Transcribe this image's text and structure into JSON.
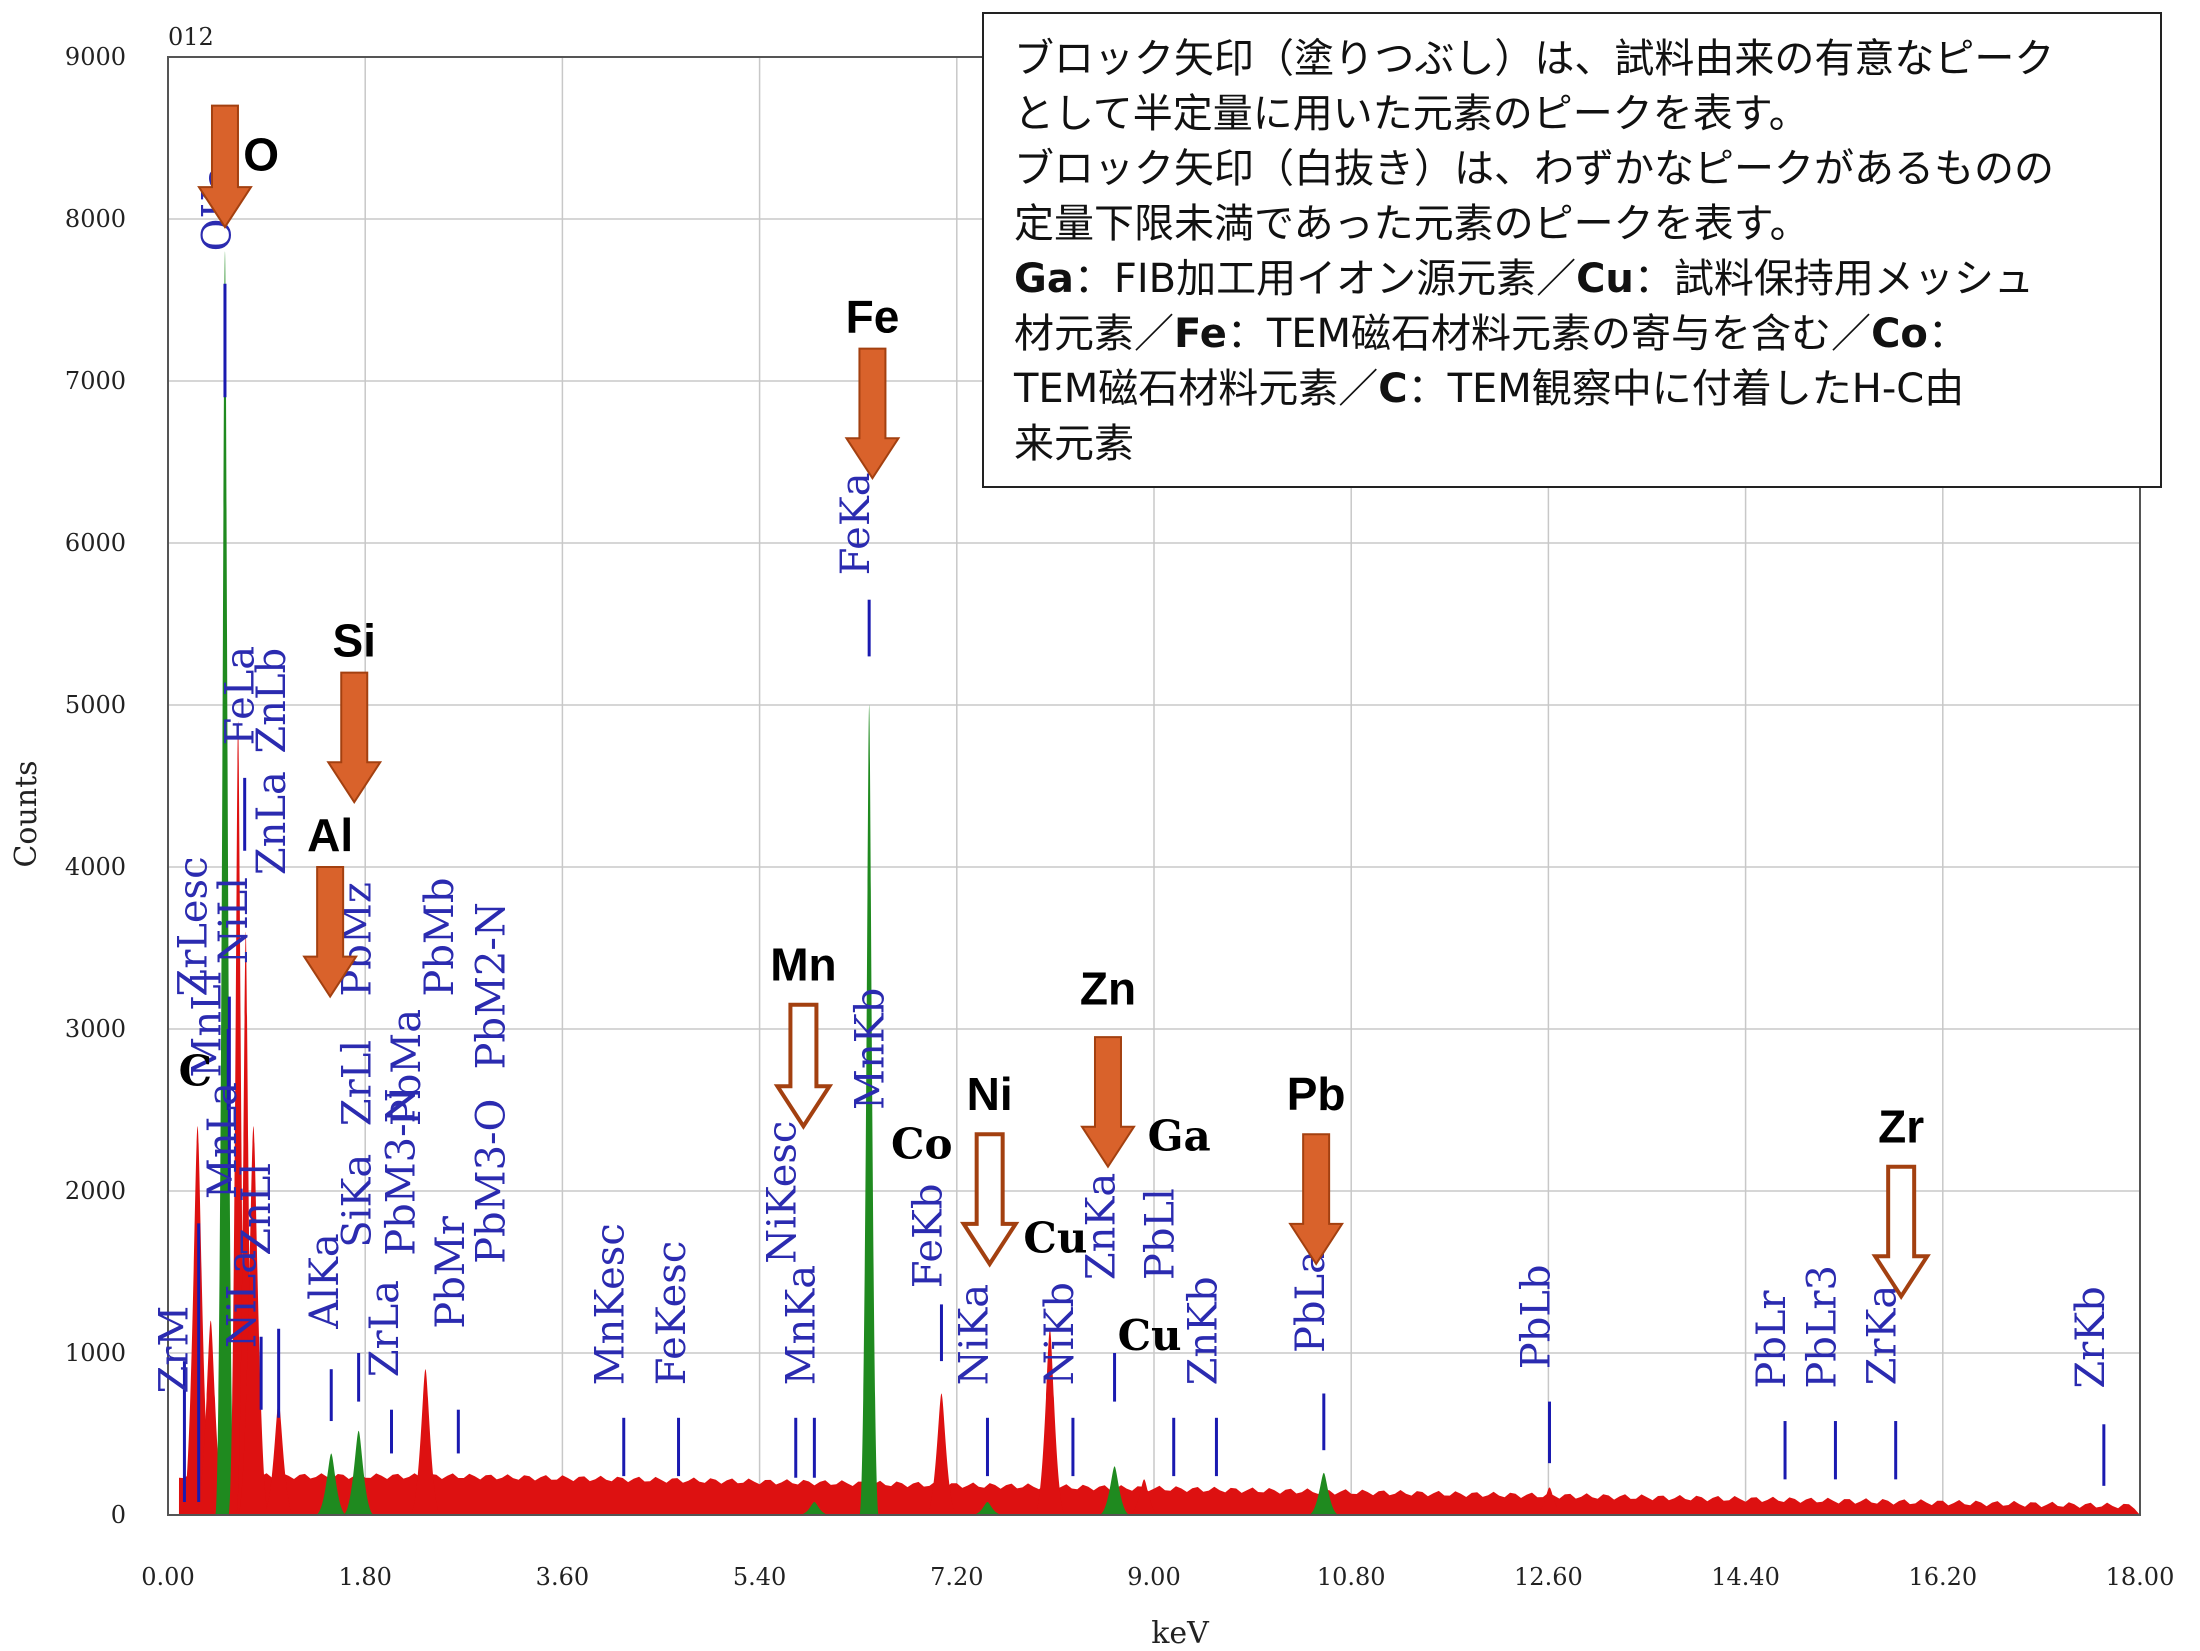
{
  "colors": {
    "spectrum": "#dd1111",
    "peak_fill": "#1f8a1f",
    "marker_lines": "#1a1ab0",
    "arrow": "#d9622b",
    "arrow_border": "#a34010",
    "grid": "#c8c8c8"
  },
  "chart_data": {
    "type": "area",
    "title": "012",
    "xlabel": "keV",
    "ylabel": "Counts",
    "xlim": [
      0,
      18
    ],
    "ylim": [
      0,
      9000
    ],
    "x_ticks": [
      "0.00",
      "1.80",
      "3.60",
      "5.40",
      "7.20",
      "9.00",
      "10.80",
      "12.60",
      "14.40",
      "16.20",
      "18.00"
    ],
    "y_ticks": [
      "0",
      "1000",
      "2000",
      "3000",
      "4000",
      "5000",
      "6000",
      "7000",
      "8000",
      "9000"
    ],
    "grid": true,
    "peaks": [
      {
        "x": 0.27,
        "y": 2400,
        "fill": "red"
      },
      {
        "x": 0.39,
        "y": 1200,
        "fill": "red"
      },
      {
        "x": 0.52,
        "y": 7800,
        "fill": "green"
      },
      {
        "x": 0.64,
        "y": 4900,
        "fill": "red"
      },
      {
        "x": 0.71,
        "y": 3600,
        "fill": "red"
      },
      {
        "x": 0.78,
        "y": 2400,
        "fill": "red"
      },
      {
        "x": 1.01,
        "y": 700,
        "fill": "red"
      },
      {
        "x": 1.49,
        "y": 380,
        "fill": "green"
      },
      {
        "x": 1.74,
        "y": 520,
        "fill": "green"
      },
      {
        "x": 2.35,
        "y": 900,
        "fill": "red"
      },
      {
        "x": 5.9,
        "y": 80,
        "fill": "green"
      },
      {
        "x": 6.4,
        "y": 5000,
        "fill": "green"
      },
      {
        "x": 7.06,
        "y": 750,
        "fill": "red"
      },
      {
        "x": 7.48,
        "y": 80,
        "fill": "green"
      },
      {
        "x": 8.05,
        "y": 1150,
        "fill": "red"
      },
      {
        "x": 8.64,
        "y": 300,
        "fill": "green"
      },
      {
        "x": 8.91,
        "y": 220,
        "fill": "red"
      },
      {
        "x": 10.55,
        "y": 260,
        "fill": "green"
      },
      {
        "x": 12.61,
        "y": 170,
        "fill": "red"
      },
      {
        "x": 14.76,
        "y": 30,
        "fill": "red"
      }
    ],
    "marker_lines": [
      {
        "label": "ZrM",
        "x": 0.15,
        "y0": 80,
        "y1": 950
      },
      {
        "label": "CKa",
        "x": 0.28,
        "y0": 80,
        "y1": 1800
      },
      {
        "label": "OKa",
        "x": 0.52,
        "y0": 6900,
        "y1": 7600
      },
      {
        "label": "ZrLesc",
        "x": 0.55,
        "y0": 2500,
        "y1": 3000
      },
      {
        "label": "MnLl",
        "x": 0.56,
        "y0": 2000,
        "y1": 3200
      },
      {
        "label": "NiLa",
        "x": 0.85,
        "y0": 650,
        "y1": 1100
      },
      {
        "label": "FeLa",
        "x": 0.7,
        "y0": 4100,
        "y1": 4550
      },
      {
        "label": "ZnLa",
        "x": 1.01,
        "y0": 600,
        "y1": 1150
      },
      {
        "label": "AlKa",
        "x": 1.49,
        "y0": 580,
        "y1": 900
      },
      {
        "label": "SiKa",
        "x": 1.74,
        "y0": 700,
        "y1": 1000
      },
      {
        "label": "ZrLa",
        "x": 2.04,
        "y0": 380,
        "y1": 650
      },
      {
        "label": "PbMr",
        "x": 2.65,
        "y0": 380,
        "y1": 650
      },
      {
        "label": "MnKesc",
        "x": 4.16,
        "y0": 240,
        "y1": 600
      },
      {
        "label": "FeKesc",
        "x": 4.66,
        "y0": 240,
        "y1": 600
      },
      {
        "label": "NiKesc",
        "x": 5.73,
        "y0": 230,
        "y1": 600
      },
      {
        "label": "MnKa",
        "x": 5.9,
        "y0": 230,
        "y1": 600
      },
      {
        "label": "FeKa",
        "x": 6.4,
        "y0": 5300,
        "y1": 5650
      },
      {
        "label": "FeKb",
        "x": 7.06,
        "y0": 950,
        "y1": 1300
      },
      {
        "label": "NiKa",
        "x": 7.48,
        "y0": 240,
        "y1": 600
      },
      {
        "label": "NiKb",
        "x": 8.26,
        "y0": 240,
        "y1": 600
      },
      {
        "label": "ZnKa",
        "x": 8.64,
        "y0": 700,
        "y1": 1000
      },
      {
        "label": "PbLl",
        "x": 9.18,
        "y0": 240,
        "y1": 600
      },
      {
        "label": "ZnKb",
        "x": 9.57,
        "y0": 240,
        "y1": 600
      },
      {
        "label": "PbLa",
        "x": 10.55,
        "y0": 400,
        "y1": 750
      },
      {
        "label": "PbLb",
        "x": 12.61,
        "y0": 320,
        "y1": 700
      },
      {
        "label": "PbLr",
        "x": 14.76,
        "y0": 220,
        "y1": 580
      },
      {
        "label": "PbLr3",
        "x": 15.22,
        "y0": 220,
        "y1": 580
      },
      {
        "label": "ZrKa",
        "x": 15.77,
        "y0": 220,
        "y1": 580
      },
      {
        "label": "ZrKb",
        "x": 17.67,
        "y0": 180,
        "y1": 560
      }
    ],
    "line_labels": [
      {
        "text": "ZrM",
        "x": 0.18,
        "y": 750
      },
      {
        "text": "OKa",
        "x": 0.57,
        "y": 7800
      },
      {
        "text": "FeLa",
        "x": 0.78,
        "y": 4750
      },
      {
        "text": "ZnLb",
        "x": 1.07,
        "y": 4700
      },
      {
        "text": "ZnLa",
        "x": 1.07,
        "y": 3950
      },
      {
        "text": "ZrLesc",
        "x": 0.35,
        "y": 3200
      },
      {
        "text": "NiLl",
        "x": 0.72,
        "y": 3400
      },
      {
        "text": "MnLl",
        "x": 0.48,
        "y": 2700
      },
      {
        "text": "MnLa",
        "x": 0.62,
        "y": 1950
      },
      {
        "text": "ZnLl",
        "x": 0.93,
        "y": 1600
      },
      {
        "text": "NiLa",
        "x": 0.8,
        "y": 1030
      },
      {
        "text": "AlKa",
        "x": 1.55,
        "y": 1150
      },
      {
        "text": "SiKa",
        "x": 1.85,
        "y": 1650
      },
      {
        "text": "ZrLl",
        "x": 1.85,
        "y": 2400
      },
      {
        "text": "PbMz",
        "x": 1.85,
        "y": 3200
      },
      {
        "text": "PbMa",
        "x": 2.3,
        "y": 2400
      },
      {
        "text": "PbMb",
        "x": 2.6,
        "y": 3200
      },
      {
        "text": "PbM3-N",
        "x": 2.25,
        "y": 1600
      },
      {
        "text": "ZrLa",
        "x": 2.1,
        "y": 850
      },
      {
        "text": "PbMr",
        "x": 2.7,
        "y": 1150
      },
      {
        "text": "PbM3-O",
        "x": 3.07,
        "y": 1550
      },
      {
        "text": "PbM2-N",
        "x": 3.07,
        "y": 2750
      },
      {
        "text": "MnKesc",
        "x": 4.16,
        "y": 800
      },
      {
        "text": "FeKesc",
        "x": 4.72,
        "y": 800
      },
      {
        "text": "NiKesc",
        "x": 5.73,
        "y": 1550
      },
      {
        "text": "MnKa",
        "x": 5.9,
        "y": 800
      },
      {
        "text": "MnKb",
        "x": 6.53,
        "y": 2500
      },
      {
        "text": "FeKa",
        "x": 6.4,
        "y": 5800
      },
      {
        "text": "FeKb",
        "x": 7.06,
        "y": 1400
      },
      {
        "text": "NiKa",
        "x": 7.48,
        "y": 800
      },
      {
        "text": "NiKb",
        "x": 8.26,
        "y": 800
      },
      {
        "text": "ZnKa",
        "x": 8.64,
        "y": 1450
      },
      {
        "text": "PbLl",
        "x": 9.18,
        "y": 1450
      },
      {
        "text": "ZnKb",
        "x": 9.57,
        "y": 800
      },
      {
        "text": "PbLa",
        "x": 10.55,
        "y": 1000
      },
      {
        "text": "PbLb",
        "x": 12.61,
        "y": 900
      },
      {
        "text": "PbLr",
        "x": 14.76,
        "y": 780
      },
      {
        "text": "PbLr3",
        "x": 15.22,
        "y": 780
      },
      {
        "text": "ZrKa",
        "x": 15.77,
        "y": 800
      },
      {
        "text": "ZrKb",
        "x": 17.67,
        "y": 780
      }
    ],
    "element_arrows": [
      {
        "label": "O",
        "x": 0.52,
        "y_top": 8700,
        "y_tip": 7950,
        "filled": true,
        "label_dx": 0.33,
        "label_y": 8300
      },
      {
        "label": "Si",
        "x": 1.7,
        "y_top": 5200,
        "y_tip": 4400,
        "filled": true,
        "label_dx": 0.0,
        "label_y": 5300
      },
      {
        "label": "Al",
        "x": 1.48,
        "y_top": 4000,
        "y_tip": 3200,
        "filled": true,
        "label_dx": 0.0,
        "label_y": 4100
      },
      {
        "label": "Fe",
        "x": 6.43,
        "y_top": 7200,
        "y_tip": 6400,
        "filled": true,
        "label_dx": 0.0,
        "label_y": 7300
      },
      {
        "label": "Mn",
        "x": 5.8,
        "y_top": 3150,
        "y_tip": 2400,
        "filled": false,
        "label_dx": 0.0,
        "label_y": 3300
      },
      {
        "label": "Ni",
        "x": 7.5,
        "y_top": 2350,
        "y_tip": 1550,
        "filled": false,
        "label_dx": 0.0,
        "label_y": 2500
      },
      {
        "label": "Zn",
        "x": 8.58,
        "y_top": 2950,
        "y_tip": 2150,
        "filled": true,
        "label_dx": 0.0,
        "label_y": 3150
      },
      {
        "label": "Pb",
        "x": 10.48,
        "y_top": 2350,
        "y_tip": 1550,
        "filled": true,
        "label_dx": 0.0,
        "label_y": 2500
      },
      {
        "label": "Zr",
        "x": 15.82,
        "y_top": 2150,
        "y_tip": 1350,
        "filled": false,
        "label_dx": 0.0,
        "label_y": 2300
      }
    ],
    "element_labels": [
      {
        "label": "C",
        "x": 0.25,
        "y": 2650,
        "serif": true
      },
      {
        "label": "Co",
        "x": 6.88,
        "y": 2200,
        "serif": true
      },
      {
        "label": "Cu",
        "x": 8.1,
        "y": 1620,
        "serif": true
      },
      {
        "label": "Ga",
        "x": 9.23,
        "y": 2250,
        "serif": true
      },
      {
        "label": "Cu",
        "x": 8.96,
        "y": 1020,
        "serif": true
      }
    ]
  },
  "note": {
    "line1": "ブロック矢印（塗りつぶし）は、試料由来の有意なピーク",
    "line2": "として半定量に用いた元素のピークを表す。",
    "line3": "ブロック矢印（白抜き）は、わずかなピークがあるものの",
    "line4": "定量下限未満であった元素のピークを表す。",
    "line5_b1": "Ga",
    "line5_t1": "：FIB加工用イオン源元素／",
    "line5_b2": "Cu",
    "line5_t2": "：試料保持用メッシュ",
    "line6_t1": "材元素／",
    "line6_b1": "Fe",
    "line6_t2": "：TEM磁石材料元素の寄与を含む／",
    "line6_b2": "Co",
    "line6_t3": "：",
    "line7_t1": "TEM磁石材料元素／",
    "line7_b1": "C",
    "line7_t2": "：TEM観察中に付着したH-C由",
    "line8": "来元素"
  }
}
